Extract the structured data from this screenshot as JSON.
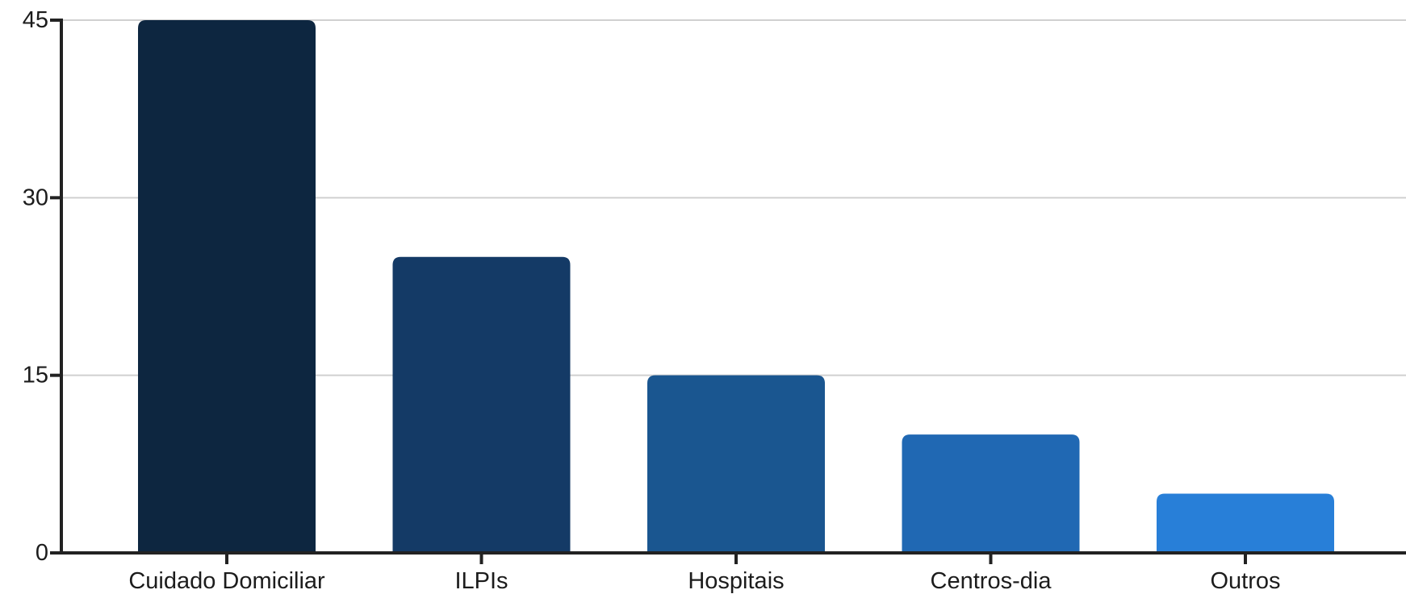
{
  "chart_data": {
    "type": "bar",
    "title": "",
    "xlabel": "",
    "ylabel": "",
    "categories": [
      "Cuidado Domiciliar",
      "ILPIs",
      "Hospitais",
      "Centros-dia",
      "Outros"
    ],
    "values": [
      45,
      25,
      15,
      10,
      5
    ],
    "bar_colors": [
      "#0d2640",
      "#143a66",
      "#1a5690",
      "#2068b3",
      "#287fd8"
    ],
    "ylim": [
      0,
      45
    ],
    "yticks": [
      0,
      15,
      30,
      45
    ],
    "grid": true,
    "grid_color": "#d0d0d0",
    "axis_color": "#222222",
    "legend": "none"
  }
}
